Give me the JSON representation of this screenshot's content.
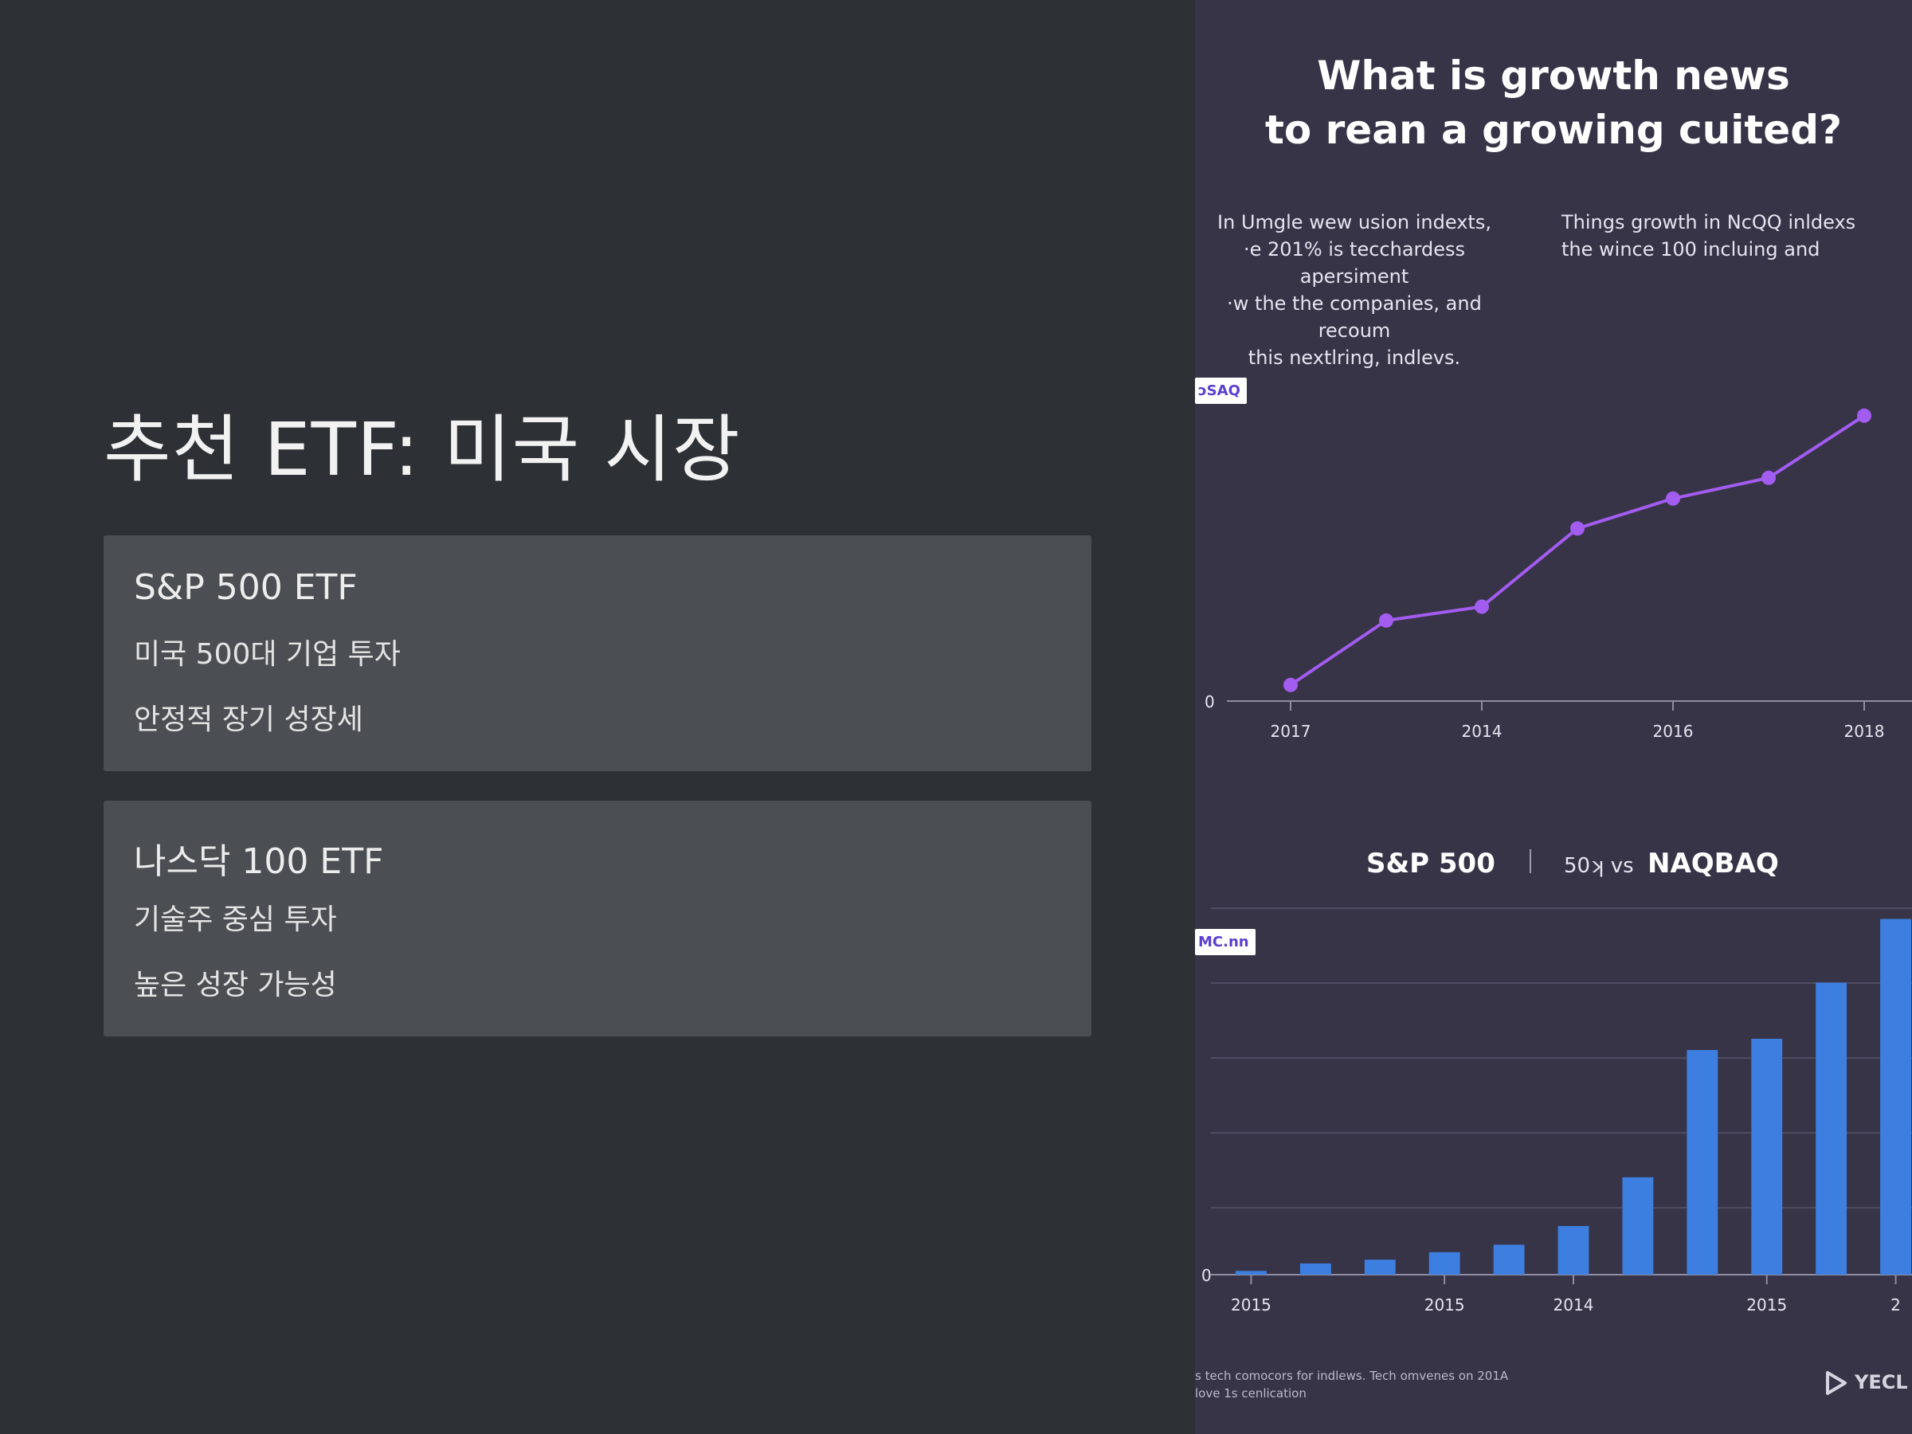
{
  "slide": {
    "title": "추천 ETF: 미국 시장",
    "cards": [
      {
        "title": "S&P 500 ETF",
        "line1": "미국 500대 기업 투자",
        "line2": "안정적 장기 성장세"
      },
      {
        "title": "나스닥 100 ETF",
        "line1": "기술주 중심 투자",
        "line2": "높은 성장 가능성"
      }
    ]
  },
  "infographic": {
    "title_line1": "What is growth news",
    "title_line2": "to rean a growing cuited?",
    "text_left": "In Umgle wew usion indexts,\n·e 201% is tecchardess apersiment\n·w the the companies, and recoum\nthis nextlring, indlevs.",
    "text_right": "Things growth in NcQQ inldexs\nthe wince 100 incluing and",
    "line_chart_label": "ɔSAQ",
    "bar_chart_label": "MC.nn",
    "legend": {
      "left": "S&P 500",
      "middle": "50ʞ vs",
      "right": "NAQBAQ"
    },
    "footnote": "s tech comocors for indlews. Tech omvenes on 201A\nlove 1s cenlication",
    "brand": "YECL"
  },
  "colors": {
    "line": "#a25cf0",
    "bar": "#3c7fe0",
    "panel": "#383448",
    "card": "#4b4f53"
  },
  "chart_data": [
    {
      "type": "line",
      "title": "",
      "y_tick_labels": [
        "0"
      ],
      "x_tick_labels": [
        "2017",
        "2014",
        "2016",
        "2018"
      ],
      "series": [
        {
          "values": [
            7,
            35,
            41,
            75,
            88,
            97,
            124
          ]
        }
      ],
      "ylim": [
        0,
        135
      ],
      "grid": false
    },
    {
      "type": "bar",
      "title": "",
      "y_tick_labels": [
        "0"
      ],
      "x_tick_labels": [
        "2015",
        "2015",
        "2014",
        "2015",
        "2"
      ],
      "series": [
        {
          "values": [
            1,
            3,
            4,
            6,
            8,
            13,
            26,
            60,
            63,
            78,
            95
          ]
        }
      ],
      "ylim": [
        0,
        100
      ],
      "grid": true
    }
  ]
}
